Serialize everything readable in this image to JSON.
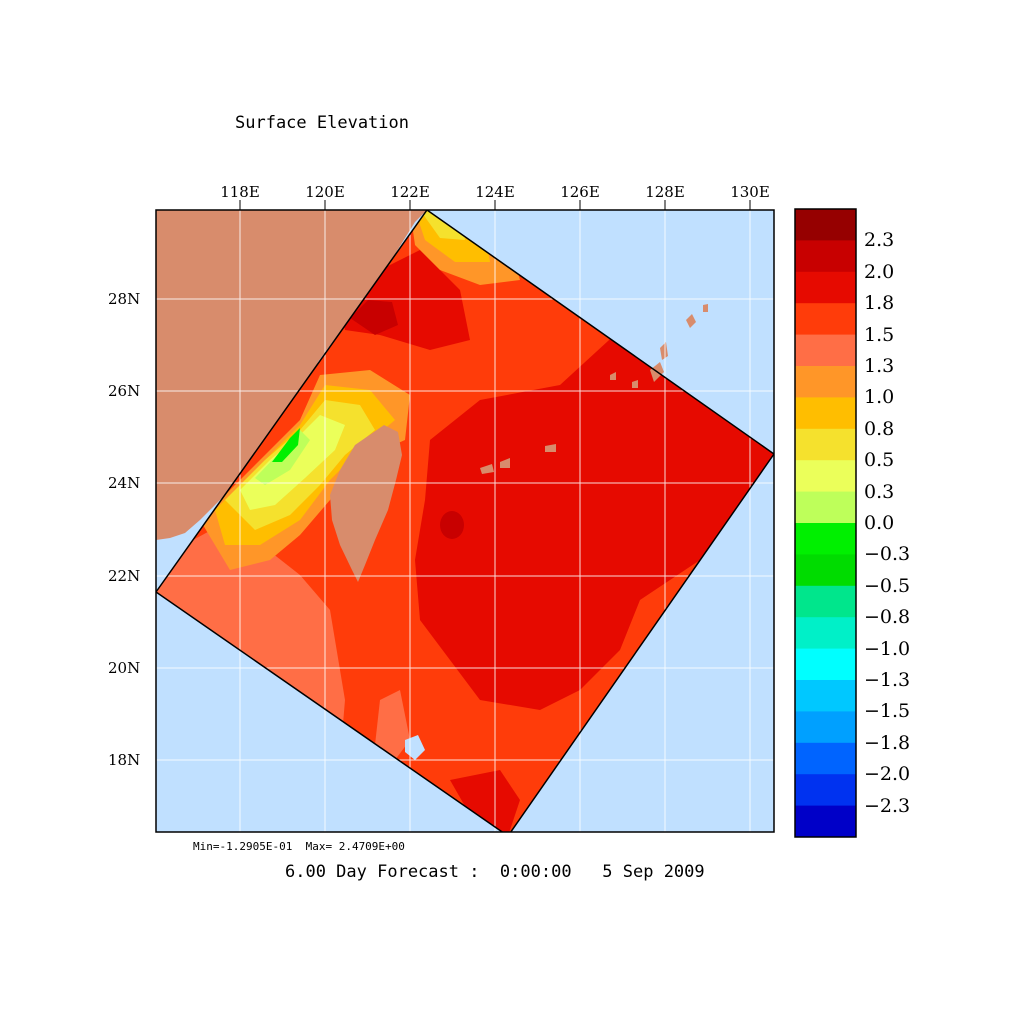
{
  "title": "Surface Elevation",
  "minmax_text": "Min=-1.2905E-01  Max= 2.4709E+00",
  "footer": "6.00 Day Forecast :  0:00:00   5 Sep 2009",
  "map": {
    "lon_labels": [
      "118E",
      "120E",
      "122E",
      "124E",
      "126E",
      "128E",
      "130E"
    ],
    "lat_labels": [
      "28N",
      "26N",
      "24N",
      "22N",
      "20N",
      "18N"
    ],
    "land_color": "#d88c6c",
    "ocean_color": "#c0e0ff"
  },
  "colorbar": {
    "labels": [
      "2.3",
      "2.0",
      "1.8",
      "1.5",
      "1.3",
      "1.0",
      "0.8",
      "0.5",
      "0.3",
      "0.0",
      "−0.3",
      "−0.5",
      "−0.8",
      "−1.0",
      "−1.3",
      "−1.5",
      "−1.8",
      "−2.0",
      "−2.3"
    ],
    "colors": [
      "#960000",
      "#c80000",
      "#e60a00",
      "#ff3c0a",
      "#ff6e46",
      "#ff9628",
      "#ffbe00",
      "#f5e12d",
      "#ebff5a",
      "#beff5a",
      "#00f000",
      "#00dc00",
      "#00e68c",
      "#00f0c8",
      "#00ffff",
      "#00c8ff",
      "#00a0ff",
      "#0064ff",
      "#0032f0",
      "#0000c8"
    ]
  }
}
